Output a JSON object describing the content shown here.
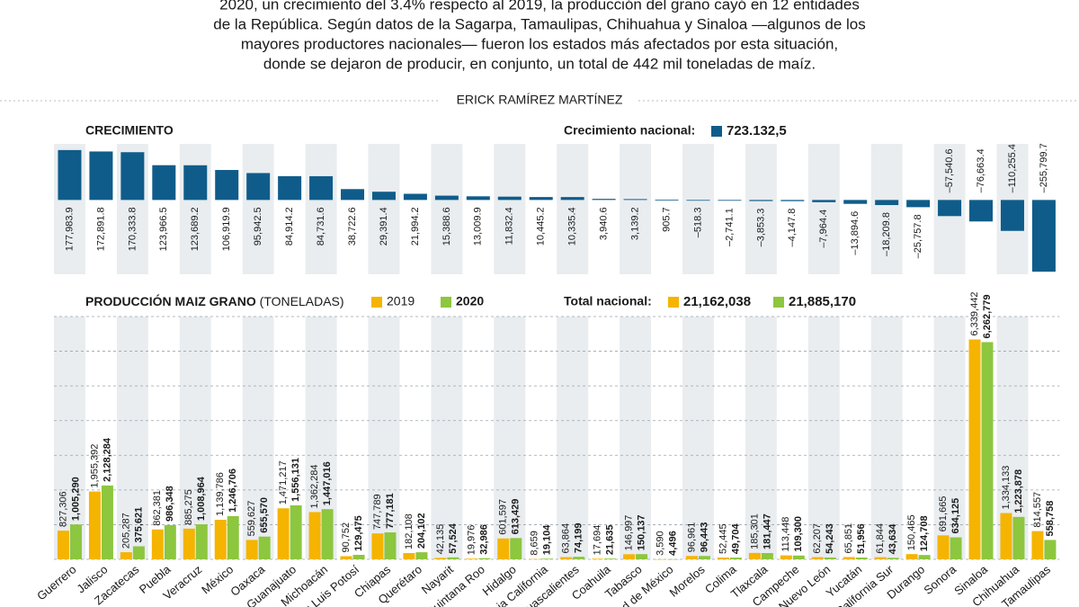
{
  "intro": [
    "2020, un crecimiento del 3.4% respecto al 2019, la producción del grano cayó en 12 entidades",
    "de la República. Según datos de la Sagarpa, Tamaulipas, Chihuahua y Sinaloa —algunos de los",
    "mayores productores nacionales— fueron los estados más afectados por esta situación,",
    "donde se dejaron de producir, en conjunto, un total de 442 mil toneladas de maíz."
  ],
  "author": "ERICK RAMÍREZ MARTÍNEZ",
  "chart_data": [
    {
      "type": "diverging_bar",
      "title": "CRECIMIENTO",
      "national_label": "Crecimiento nacional:",
      "national_value": 723132.5,
      "national_value_label": "723.132,5",
      "color": "#0f5c8a",
      "values": [
        177983.9,
        172891.8,
        170333.8,
        123966.5,
        123689.2,
        106919.9,
        95942.5,
        84914.2,
        84731.6,
        38722.6,
        29391.4,
        21994.2,
        15388.6,
        13009.9,
        11832.4,
        10445.2,
        10335.4,
        3940.6,
        3139.2,
        905.7,
        -518.3,
        -2741.1,
        -3853.3,
        -4147.8,
        -7964.4,
        -13894.6,
        -18209.8,
        -25757.8,
        -57540.6,
        -76663.4,
        -110255.4,
        -255799.7
      ],
      "value_labels": [
        "177,983.9",
        "172,891.8",
        "170,333.8",
        "123,966.5",
        "123,689.2",
        "106,919.9",
        "95,942.5",
        "84,914.2",
        "84,731.6",
        "38,722.6",
        "29,391.4",
        "21,994.2",
        "15,388.6",
        "13,009.9",
        "11,832.4",
        "10,445.2",
        "10,335.4",
        "3,940.6",
        "3,139.2",
        "905.7",
        "–518.3",
        "–2,741.1",
        "–3,853.3",
        "–4,147.8",
        "–7,964.4",
        "–13,894.6",
        "–18,209.8",
        "–25,757.8",
        "–57,540.6",
        "–76,663.4",
        "–110,255.4",
        "–255,799.7"
      ],
      "ylim": [
        -265000,
        200000
      ]
    },
    {
      "type": "grouped_bar",
      "title": "PRODUCCIÓN MAIZ GRANO",
      "subtitle": "(TONELADAS)",
      "total_label": "Total nacional:",
      "categories": [
        "Guerrero",
        "Jalisco",
        "Zacatecas",
        "Puebla",
        "Veracruz",
        "México",
        "Oaxaca",
        "Guanajuato",
        "Michoacán",
        "San Luis Potosí",
        "Chiapas",
        "Querétaro",
        "Nayarit",
        "Quintana Roo",
        "Hidalgo",
        "Baja California",
        "Aguascalientes",
        "Coahuila",
        "Tabasco",
        "Ciudad de México",
        "Morelos",
        "Colima",
        "Tlaxcala",
        "Campeche",
        "Nuevo León",
        "Yucatán",
        "Baja California Sur",
        "Durango",
        "Sonora",
        "Sinaloa",
        "Chihuahua",
        "Tamaulipas"
      ],
      "series": [
        {
          "name": "2019",
          "color": "#f5b400",
          "total": 21162038,
          "total_label": "21,162,038",
          "values": [
            827306,
            1955392,
            205287,
            862381,
            885275,
            1139786,
            559627,
            1471217,
            1362284,
            90752,
            747789,
            182108,
            42135,
            19976,
            601597,
            8659,
            63864,
            17694,
            146997,
            3590,
            96961,
            52445,
            185301,
            113448,
            62207,
            65851,
            61844,
            150465,
            691665,
            6339442,
            1334133,
            814557
          ],
          "value_labels": [
            "827,306",
            "1,955,392",
            "205,287",
            "862,381",
            "885,275",
            "1,139,786",
            "559,627",
            "1,471,217",
            "1,362,284",
            "90,752",
            "747,789",
            "182,108",
            "42,135",
            "19,976",
            "601,597",
            "8,659",
            "63,864",
            "17,694",
            "146,997",
            "3,590",
            "96,961",
            "52,445",
            "185,301",
            "113,448",
            "62,207",
            "65,851",
            "61,844",
            "150,465",
            "691,665",
            "6,339,442",
            "1,334,133",
            "814,557"
          ]
        },
        {
          "name": "2020",
          "color": "#8dc63f",
          "total": 21885170,
          "total_label": "21,885,170",
          "values": [
            1005290,
            2128284,
            375621,
            986348,
            1008964,
            1246706,
            655570,
            1556131,
            1447016,
            129475,
            777181,
            204102,
            57524,
            32986,
            613429,
            19104,
            74199,
            21635,
            150137,
            4496,
            96443,
            49704,
            181447,
            109300,
            54243,
            51956,
            43634,
            124708,
            634125,
            6262779,
            1223878,
            558758
          ],
          "value_labels": [
            "1,005,290",
            "2,128,284",
            "375,621",
            "986,348",
            "1,008,964",
            "1,246,706",
            "655,570",
            "1,556,131",
            "1,447,016",
            "129,475",
            "777,181",
            "204,102",
            "57,524",
            "32,986",
            "613,429",
            "19,104",
            "74,199",
            "21,635",
            "150,137",
            "4,496",
            "96,443",
            "49,704",
            "181,447",
            "109,300",
            "54,243",
            "51,956",
            "43,634",
            "124,708",
            "634,125",
            "6,262,779",
            "1,223,878",
            "558,758"
          ]
        }
      ],
      "ylim": [
        0,
        7000000
      ],
      "yticks": [
        0,
        1000000,
        2000000,
        3000000,
        4000000,
        5000000,
        6000000,
        7000000
      ],
      "grid": true
    }
  ]
}
